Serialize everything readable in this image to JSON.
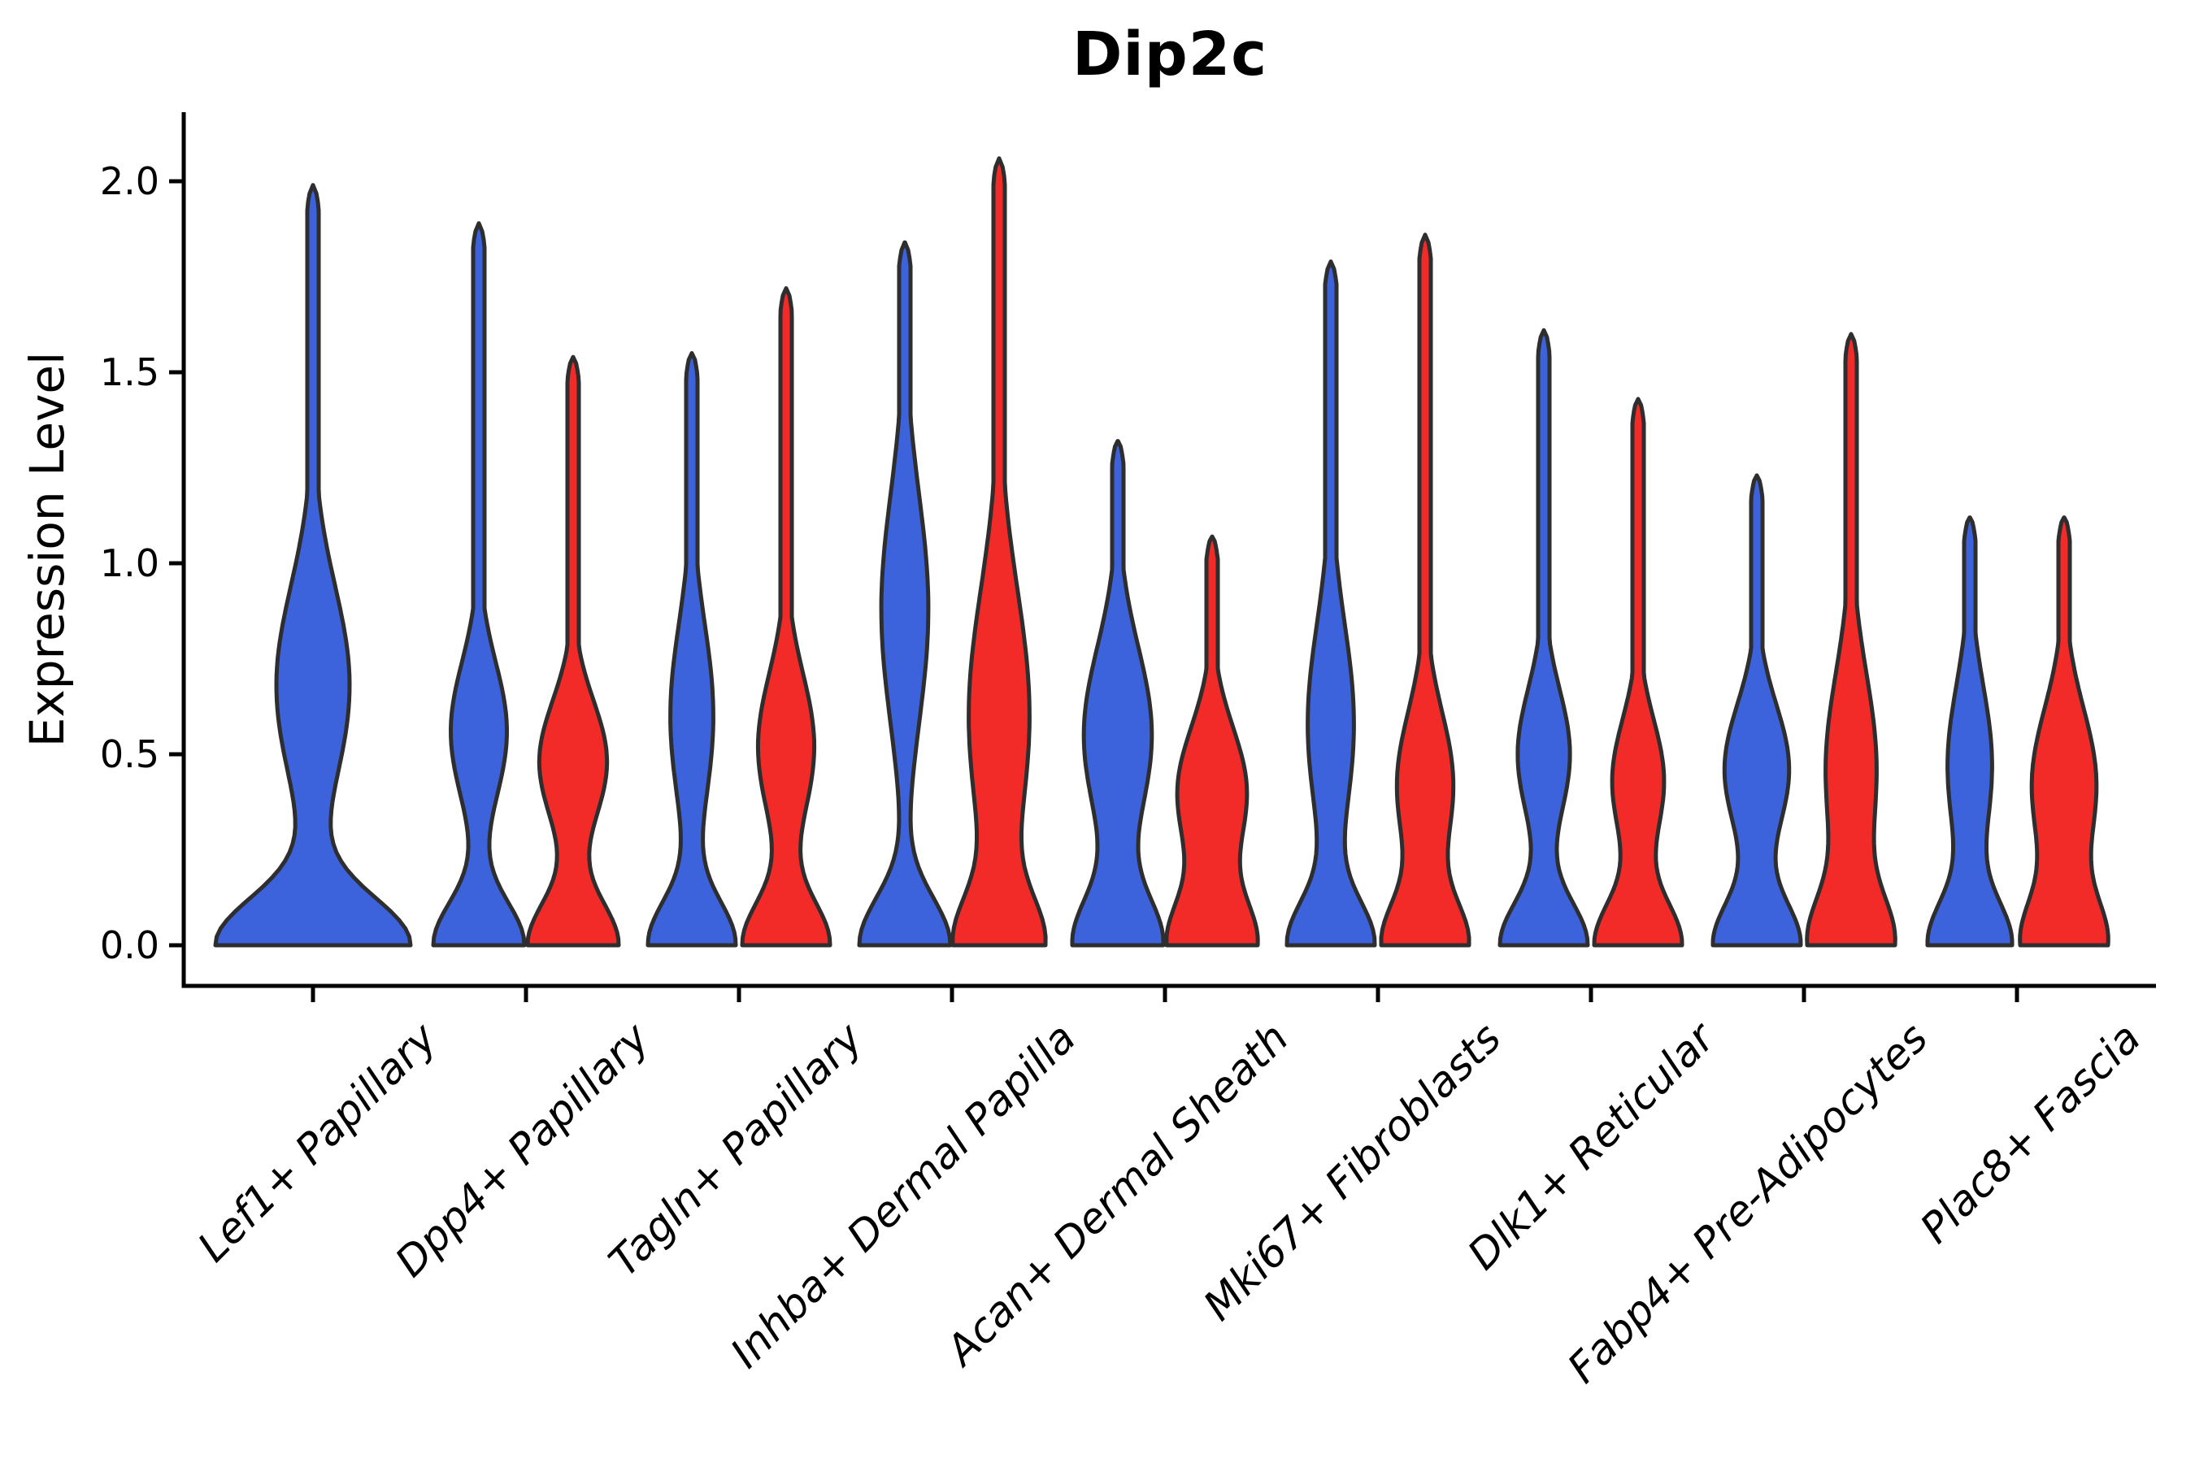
{
  "figure": {
    "title": "Dip2c",
    "ylabel": "Expression Level"
  },
  "chart_data": {
    "type": "violin",
    "title": "Dip2c",
    "xlabel": "",
    "ylabel": "Expression Level",
    "grid": false,
    "legend": "none",
    "ylim": [
      -0.12,
      2.15
    ],
    "ytick_labels": [
      "0.0",
      "0.5",
      "1.0",
      "1.5",
      "2.0"
    ],
    "ytick_values": [
      0.0,
      0.5,
      1.0,
      1.5,
      2.0
    ],
    "categories": [
      "Lef1+ Papillary",
      "Dpp4+ Papillary",
      "Tagln+ Papillary",
      "Inhba+ Dermal Papilla",
      "Acan+ Dermal Sheath",
      "Mki67+ Fibroblasts",
      "Dlk1+ Reticular",
      "Fabp4+ Pre-Adipocytes",
      "Plac8+ Fascia"
    ],
    "series_colors": {
      "blue": "#3D63DC",
      "red": "#F22B28"
    },
    "violin_edge_color": "#2E2E2E",
    "violin_edge_width": 5,
    "stem_half_width": 7,
    "violins": [
      {
        "category": "Lef1+ Papillary",
        "color": "blue",
        "x_offset": 0,
        "max_expression": 1.99,
        "half_width": 120,
        "bulge_center": 0.68,
        "bulge_sd": 0.26,
        "bulge_amp": 0.38,
        "base_sd": 0.125
      },
      {
        "category": "Dpp4+ Papillary",
        "color": "blue",
        "x_offset": -58,
        "max_expression": 1.89,
        "half_width": 56,
        "bulge_center": 0.56,
        "bulge_sd": 0.18,
        "bulge_amp": 0.62,
        "base_sd": 0.115
      },
      {
        "category": "Dpp4+ Papillary",
        "color": "red",
        "x_offset": 58,
        "max_expression": 1.54,
        "half_width": 56,
        "bulge_center": 0.48,
        "bulge_sd": 0.16,
        "bulge_amp": 0.75,
        "base_sd": 0.115
      },
      {
        "category": "Tagln+ Papillary",
        "color": "blue",
        "x_offset": -58,
        "max_expression": 1.55,
        "half_width": 54,
        "bulge_center": 0.6,
        "bulge_sd": 0.24,
        "bulge_amp": 0.5,
        "base_sd": 0.115
      },
      {
        "category": "Tagln+ Papillary",
        "color": "red",
        "x_offset": 58,
        "max_expression": 1.72,
        "half_width": 54,
        "bulge_center": 0.52,
        "bulge_sd": 0.19,
        "bulge_amp": 0.65,
        "base_sd": 0.115
      },
      {
        "category": "Inhba+ Dermal Papilla",
        "color": "blue",
        "x_offset": -58,
        "max_expression": 1.84,
        "half_width": 56,
        "bulge_center": 0.88,
        "bulge_sd": 0.3,
        "bulge_amp": 0.52,
        "base_sd": 0.125
      },
      {
        "category": "Inhba+ Dermal Papilla",
        "color": "red",
        "x_offset": 58,
        "max_expression": 2.06,
        "half_width": 57,
        "bulge_center": 0.6,
        "bulge_sd": 0.33,
        "bulge_amp": 0.75,
        "base_sd": 0.125
      },
      {
        "category": "Acan+ Dermal Sheath",
        "color": "blue",
        "x_offset": -58,
        "max_expression": 1.32,
        "half_width": 56,
        "bulge_center": 0.55,
        "bulge_sd": 0.23,
        "bulge_amp": 0.78,
        "base_sd": 0.125
      },
      {
        "category": "Acan+ Dermal Sheath",
        "color": "red",
        "x_offset": 58,
        "max_expression": 1.07,
        "half_width": 56,
        "bulge_center": 0.4,
        "bulge_sd": 0.17,
        "bulge_amp": 0.8,
        "base_sd": 0.12
      },
      {
        "category": "Mki67+ Fibroblasts",
        "color": "blue",
        "x_offset": -58,
        "max_expression": 1.79,
        "half_width": 54,
        "bulge_center": 0.58,
        "bulge_sd": 0.26,
        "bulge_amp": 0.55,
        "base_sd": 0.115
      },
      {
        "category": "Mki67+ Fibroblasts",
        "color": "red",
        "x_offset": 58,
        "max_expression": 1.86,
        "half_width": 54,
        "bulge_center": 0.42,
        "bulge_sd": 0.19,
        "bulge_amp": 0.68,
        "base_sd": 0.115
      },
      {
        "category": "Dlk1+ Reticular",
        "color": "blue",
        "x_offset": -58,
        "max_expression": 1.61,
        "half_width": 54,
        "bulge_center": 0.5,
        "bulge_sd": 0.17,
        "bulge_amp": 0.6,
        "base_sd": 0.115
      },
      {
        "category": "Dlk1+ Reticular",
        "color": "red",
        "x_offset": 58,
        "max_expression": 1.43,
        "half_width": 54,
        "bulge_center": 0.43,
        "bulge_sd": 0.16,
        "bulge_amp": 0.6,
        "base_sd": 0.115
      },
      {
        "category": "Fabp4+ Pre-Adipocytes",
        "color": "blue",
        "x_offset": -58,
        "max_expression": 1.23,
        "half_width": 54,
        "bulge_center": 0.46,
        "bulge_sd": 0.17,
        "bulge_amp": 0.75,
        "base_sd": 0.115
      },
      {
        "category": "Fabp4+ Pre-Adipocytes",
        "color": "red",
        "x_offset": 58,
        "max_expression": 1.6,
        "half_width": 54,
        "bulge_center": 0.46,
        "bulge_sd": 0.25,
        "bulge_amp": 0.65,
        "base_sd": 0.125
      },
      {
        "category": "Plac8+ Fascia",
        "color": "blue",
        "x_offset": -58,
        "max_expression": 1.12,
        "half_width": 52,
        "bulge_center": 0.47,
        "bulge_sd": 0.21,
        "bulge_amp": 0.55,
        "base_sd": 0.115
      },
      {
        "category": "Plac8+ Fascia",
        "color": "red",
        "x_offset": 58,
        "max_expression": 1.12,
        "half_width": 54,
        "bulge_center": 0.42,
        "bulge_sd": 0.2,
        "bulge_amp": 0.8,
        "base_sd": 0.12
      }
    ]
  },
  "style": {
    "background": "#FFFFFF",
    "axis_color": "#000000",
    "text_color": "#000000"
  }
}
